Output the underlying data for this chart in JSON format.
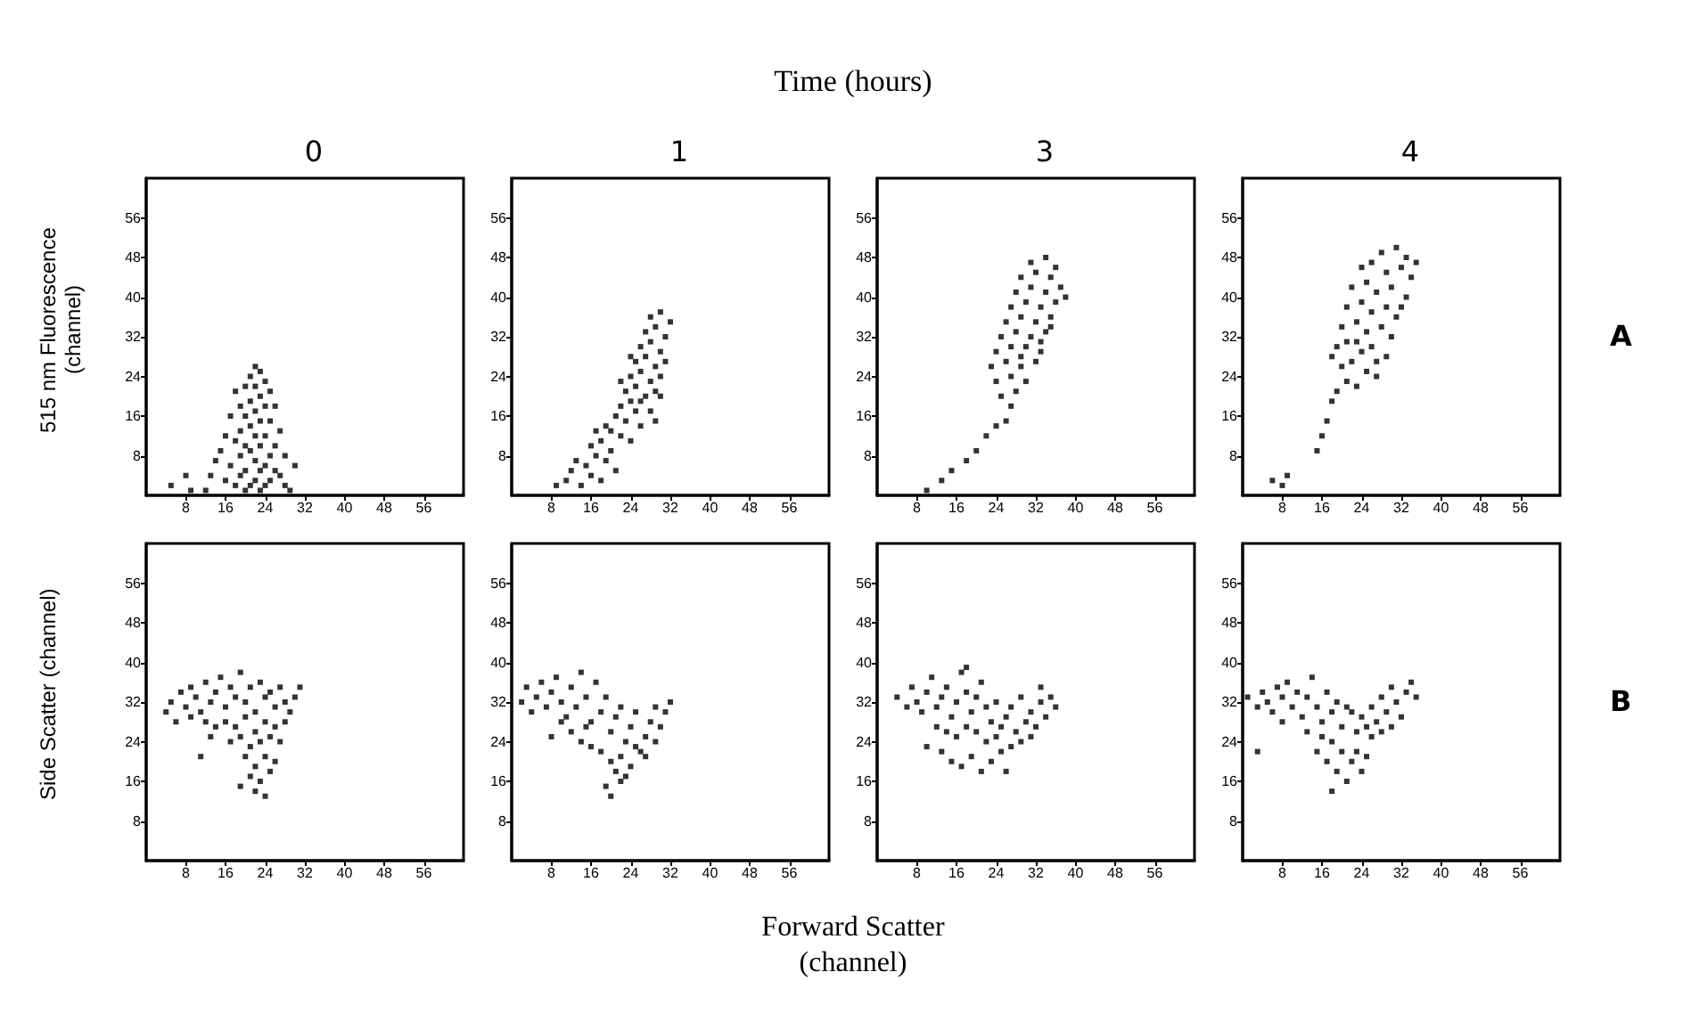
{
  "chart_data": [
    {
      "type": "scatter",
      "title": "0",
      "ylabel": "515 nm Fluorescence (channel)",
      "annotations": [
        "Time (hours)"
      ],
      "xlim": [
        0,
        64
      ],
      "ylim": [
        0,
        64
      ],
      "xticks": [
        8,
        16,
        24,
        32,
        40,
        48,
        56
      ],
      "yticks": [
        8,
        16,
        24,
        32,
        40,
        48,
        56
      ],
      "marker": "square",
      "color": "#000000",
      "x": [
        22,
        23,
        21,
        24,
        20,
        22,
        25,
        18,
        23,
        21,
        19,
        24,
        26,
        22,
        20,
        17,
        23,
        25,
        21,
        19,
        27,
        16,
        22,
        24,
        18,
        20,
        23,
        26,
        15,
        21,
        25,
        19,
        28,
        14,
        22,
        24,
        17,
        20,
        23,
        26,
        13,
        19,
        22,
        25,
        16,
        21,
        24,
        18,
        28,
        20,
        23,
        12,
        29,
        8,
        5,
        30,
        27,
        9
      ],
      "values": [
        26,
        25,
        24,
        23,
        22,
        22,
        21,
        21,
        20,
        19,
        18,
        18,
        18,
        17,
        16,
        16,
        15,
        15,
        14,
        13,
        13,
        12,
        12,
        12,
        11,
        10,
        10,
        10,
        9,
        9,
        8,
        8,
        8,
        7,
        7,
        6,
        6,
        5,
        5,
        5,
        4,
        4,
        3,
        3,
        3,
        2,
        2,
        2,
        2,
        1,
        1,
        1,
        1,
        4,
        2,
        6,
        4,
        1
      ]
    },
    {
      "type": "scatter",
      "title": "1",
      "xlim": [
        0,
        64
      ],
      "ylim": [
        0,
        64
      ],
      "xticks": [
        8,
        16,
        24,
        32,
        40,
        48,
        56
      ],
      "yticks": [
        8,
        16,
        24,
        32,
        40,
        48,
        56
      ],
      "marker": "square",
      "color": "#000000",
      "x": [
        9,
        11,
        12,
        14,
        13,
        15,
        16,
        17,
        18,
        16,
        18,
        19,
        20,
        21,
        20,
        22,
        21,
        23,
        24,
        22,
        24,
        25,
        26,
        23,
        25,
        27,
        28,
        24,
        26,
        28,
        29,
        25,
        27,
        29,
        30,
        26,
        28,
        30,
        31,
        27,
        29,
        31,
        28,
        30,
        32,
        24,
        22,
        26,
        29,
        19,
        17,
        30
      ],
      "values": [
        2,
        3,
        5,
        2,
        7,
        6,
        4,
        8,
        3,
        10,
        11,
        7,
        9,
        5,
        13,
        12,
        16,
        15,
        11,
        18,
        19,
        17,
        14,
        21,
        22,
        20,
        17,
        24,
        25,
        23,
        21,
        27,
        28,
        26,
        24,
        30,
        31,
        29,
        27,
        33,
        34,
        32,
        36,
        37,
        35,
        28,
        23,
        19,
        15,
        14,
        13,
        20
      ]
    },
    {
      "type": "scatter",
      "title": "3",
      "xlim": [
        0,
        64
      ],
      "ylim": [
        0,
        64
      ],
      "xticks": [
        8,
        16,
        24,
        32,
        40,
        48,
        56
      ],
      "yticks": [
        8,
        16,
        24,
        32,
        40,
        48,
        56
      ],
      "marker": "square",
      "color": "#000000",
      "x": [
        10,
        13,
        15,
        18,
        20,
        22,
        24,
        26,
        27,
        25,
        28,
        24,
        27,
        30,
        23,
        26,
        29,
        32,
        24,
        27,
        30,
        33,
        25,
        28,
        31,
        34,
        26,
        29,
        32,
        35,
        27,
        30,
        33,
        36,
        28,
        31,
        34,
        37,
        29,
        32,
        35,
        31,
        34,
        36,
        38,
        33,
        29,
        35
      ],
      "values": [
        1,
        3,
        5,
        7,
        9,
        12,
        14,
        15,
        18,
        20,
        21,
        23,
        24,
        23,
        26,
        27,
        26,
        27,
        29,
        30,
        30,
        29,
        32,
        33,
        32,
        33,
        35,
        36,
        35,
        36,
        38,
        39,
        38,
        39,
        41,
        42,
        41,
        42,
        44,
        45,
        44,
        47,
        48,
        46,
        40,
        31,
        28,
        34
      ]
    },
    {
      "type": "scatter",
      "title": "4",
      "annotations": [
        "A"
      ],
      "xlim": [
        0,
        64
      ],
      "ylim": [
        0,
        64
      ],
      "xticks": [
        8,
        16,
        24,
        32,
        40,
        48,
        56
      ],
      "yticks": [
        8,
        16,
        24,
        32,
        40,
        48,
        56
      ],
      "marker": "square",
      "color": "#000000",
      "x": [
        6,
        8,
        9,
        15,
        16,
        17,
        18,
        19,
        21,
        23,
        20,
        22,
        25,
        27,
        19,
        21,
        24,
        26,
        29,
        20,
        23,
        25,
        28,
        30,
        21,
        24,
        26,
        29,
        31,
        22,
        25,
        27,
        30,
        33,
        24,
        26,
        29,
        32,
        34,
        28,
        31,
        33,
        35,
        18,
        32,
        27,
        23
      ],
      "values": [
        3,
        2,
        4,
        9,
        12,
        15,
        19,
        21,
        23,
        22,
        26,
        27,
        25,
        24,
        30,
        31,
        29,
        30,
        28,
        34,
        35,
        33,
        34,
        32,
        38,
        39,
        37,
        38,
        36,
        42,
        43,
        41,
        42,
        40,
        46,
        47,
        45,
        46,
        44,
        49,
        50,
        48,
        47,
        28,
        38,
        27,
        31
      ]
    },
    {
      "type": "scatter",
      "ylabel": "Side Scatter (channel)",
      "xlim": [
        0,
        64
      ],
      "ylim": [
        0,
        64
      ],
      "xticks": [
        8,
        16,
        24,
        32,
        40,
        48,
        56
      ],
      "yticks": [
        8,
        16,
        24,
        32,
        40,
        48,
        56
      ],
      "marker": "square",
      "color": "#000000",
      "x": [
        5,
        7,
        8,
        9,
        10,
        11,
        12,
        13,
        14,
        15,
        16,
        17,
        18,
        19,
        20,
        21,
        22,
        23,
        24,
        25,
        26,
        27,
        28,
        29,
        30,
        31,
        6,
        9,
        12,
        14,
        16,
        18,
        20,
        22,
        24,
        26,
        28,
        13,
        17,
        19,
        21,
        23,
        25,
        27,
        20,
        22,
        24,
        26,
        21,
        23,
        25,
        19,
        22,
        24,
        11,
        4
      ],
      "values": [
        32,
        34,
        31,
        35,
        33,
        30,
        36,
        32,
        34,
        37,
        31,
        35,
        33,
        38,
        32,
        35,
        30,
        36,
        33,
        34,
        31,
        35,
        32,
        30,
        33,
        35,
        28,
        29,
        28,
        27,
        28,
        27,
        29,
        26,
        28,
        27,
        28,
        25,
        24,
        25,
        23,
        24,
        25,
        24,
        21,
        19,
        21,
        20,
        17,
        16,
        18,
        15,
        14,
        13,
        21,
        30
      ]
    },
    {
      "type": "scatter",
      "xlabel": "Forward Scatter (channel)",
      "xlim": [
        0,
        64
      ],
      "ylim": [
        0,
        64
      ],
      "xticks": [
        8,
        16,
        24,
        32,
        40,
        48,
        56
      ],
      "yticks": [
        8,
        16,
        24,
        32,
        40,
        48,
        56
      ],
      "marker": "square",
      "color": "#000000",
      "x": [
        2,
        3,
        4,
        5,
        6,
        7,
        8,
        9,
        10,
        11,
        12,
        13,
        14,
        15,
        16,
        17,
        18,
        19,
        20,
        21,
        22,
        23,
        24,
        25,
        26,
        27,
        28,
        29,
        30,
        31,
        32,
        12,
        14,
        16,
        18,
        20,
        21,
        22,
        23,
        24,
        19,
        20,
        22,
        25,
        27,
        29,
        15,
        10,
        8
      ],
      "values": [
        32,
        35,
        30,
        33,
        36,
        31,
        34,
        37,
        32,
        29,
        35,
        31,
        38,
        33,
        28,
        36,
        30,
        33,
        26,
        29,
        31,
        24,
        27,
        30,
        22,
        25,
        28,
        31,
        27,
        30,
        32,
        26,
        24,
        23,
        22,
        20,
        18,
        21,
        17,
        19,
        15,
        13,
        16,
        23,
        21,
        24,
        27,
        28,
        25
      ]
    },
    {
      "type": "scatter",
      "xlim": [
        0,
        64
      ],
      "ylim": [
        0,
        64
      ],
      "xticks": [
        8,
        16,
        24,
        32,
        40,
        48,
        56
      ],
      "yticks": [
        8,
        16,
        24,
        32,
        40,
        48,
        56
      ],
      "marker": "square",
      "color": "#000000",
      "x": [
        4,
        6,
        7,
        8,
        9,
        10,
        11,
        12,
        13,
        14,
        15,
        16,
        17,
        18,
        19,
        20,
        21,
        22,
        23,
        24,
        25,
        12,
        14,
        16,
        18,
        20,
        22,
        24,
        10,
        13,
        15,
        17,
        19,
        21,
        23,
        25,
        26,
        26,
        27,
        28,
        29,
        30,
        31,
        32,
        33,
        34,
        35,
        36,
        29,
        31,
        27,
        33,
        18
      ],
      "values": [
        33,
        31,
        35,
        32,
        30,
        34,
        37,
        31,
        33,
        35,
        29,
        32,
        38,
        34,
        30,
        33,
        36,
        31,
        28,
        32,
        27,
        27,
        26,
        25,
        27,
        26,
        24,
        25,
        23,
        22,
        20,
        19,
        21,
        18,
        20,
        22,
        18,
        29,
        31,
        26,
        33,
        28,
        30,
        27,
        32,
        29,
        33,
        31,
        24,
        25,
        23,
        35,
        39
      ]
    },
    {
      "type": "scatter",
      "annotations": [
        "B"
      ],
      "xlim": [
        0,
        64
      ],
      "ylim": [
        0,
        64
      ],
      "xticks": [
        8,
        16,
        24,
        32,
        40,
        48,
        56
      ],
      "yticks": [
        8,
        16,
        24,
        32,
        40,
        48,
        56
      ],
      "marker": "square",
      "color": "#000000",
      "x": [
        1,
        3,
        4,
        5,
        6,
        7,
        8,
        9,
        10,
        11,
        12,
        13,
        14,
        15,
        16,
        17,
        18,
        19,
        20,
        21,
        13,
        16,
        18,
        20,
        15,
        17,
        19,
        21,
        22,
        24,
        23,
        25,
        18,
        23,
        24,
        25,
        26,
        27,
        28,
        29,
        30,
        31,
        32,
        33,
        34,
        35,
        26,
        28,
        30,
        22,
        8,
        3
      ],
      "values": [
        33,
        31,
        34,
        32,
        30,
        35,
        33,
        36,
        31,
        34,
        29,
        33,
        37,
        31,
        28,
        34,
        30,
        32,
        27,
        31,
        26,
        25,
        24,
        22,
        22,
        20,
        18,
        16,
        20,
        18,
        22,
        21,
        14,
        26,
        29,
        27,
        31,
        28,
        33,
        30,
        35,
        32,
        29,
        34,
        36,
        33,
        25,
        26,
        27,
        30,
        28,
        22
      ]
    }
  ]
}
